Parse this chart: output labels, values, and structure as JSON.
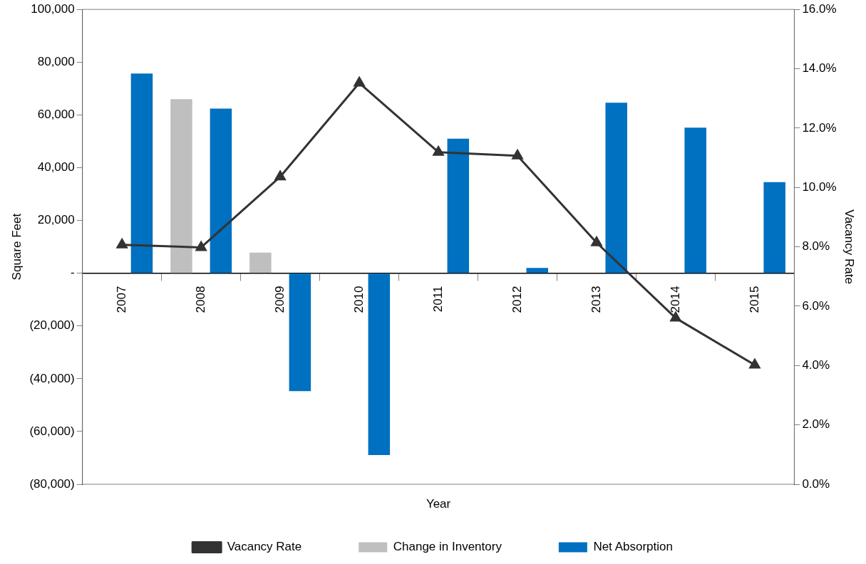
{
  "chart_data": {
    "type": "bar",
    "xlabel": "Year",
    "ylabel": "Square Feet",
    "y2label": "Vacancy Rate",
    "categories": [
      "2007",
      "2008",
      "2009",
      "2010",
      "2011",
      "2012",
      "2013",
      "2014",
      "2015"
    ],
    "series": [
      {
        "name": "Change in Inventory",
        "color": "#bfbfbf",
        "values": [
          0,
          66000,
          7800,
          0,
          0,
          0,
          0,
          0,
          0
        ]
      },
      {
        "name": "Net Absorption",
        "color": "#0070c0",
        "values": [
          75700,
          62400,
          -44700,
          -68900,
          51000,
          2000,
          64600,
          55200,
          34500
        ]
      },
      {
        "name": "Vacancy Rate",
        "type": "line",
        "axis": "y2",
        "color": "#333333",
        "marker": "triangle",
        "values": [
          8.07,
          7.98,
          10.36,
          13.52,
          11.19,
          11.07,
          8.14,
          5.6,
          4.02
        ]
      }
    ],
    "ylim": [
      -80000,
      100000
    ],
    "yticks": [
      {
        "value": -80000,
        "label": "(80,000)"
      },
      {
        "value": -60000,
        "label": "(60,000)"
      },
      {
        "value": -40000,
        "label": "(40,000)"
      },
      {
        "value": -20000,
        "label": "(20,000)"
      },
      {
        "value": 0,
        "label": "-"
      },
      {
        "value": 20000,
        "label": "20,000"
      },
      {
        "value": 40000,
        "label": "40,000"
      },
      {
        "value": 60000,
        "label": "60,000"
      },
      {
        "value": 80000,
        "label": "80,000"
      },
      {
        "value": 100000,
        "label": "100,000"
      }
    ],
    "y2lim": [
      0,
      16
    ],
    "y2ticks": [
      {
        "value": 0,
        "label": "0.0%"
      },
      {
        "value": 2,
        "label": "2.0%"
      },
      {
        "value": 4,
        "label": "4.0%"
      },
      {
        "value": 6,
        "label": "6.0%"
      },
      {
        "value": 8,
        "label": "8.0%"
      },
      {
        "value": 10,
        "label": "10.0%"
      },
      {
        "value": 12,
        "label": "12.0%"
      },
      {
        "value": 14,
        "label": "14.0%"
      },
      {
        "value": 16,
        "label": "16.0%"
      }
    ],
    "grid": false,
    "legend": "bottom"
  }
}
